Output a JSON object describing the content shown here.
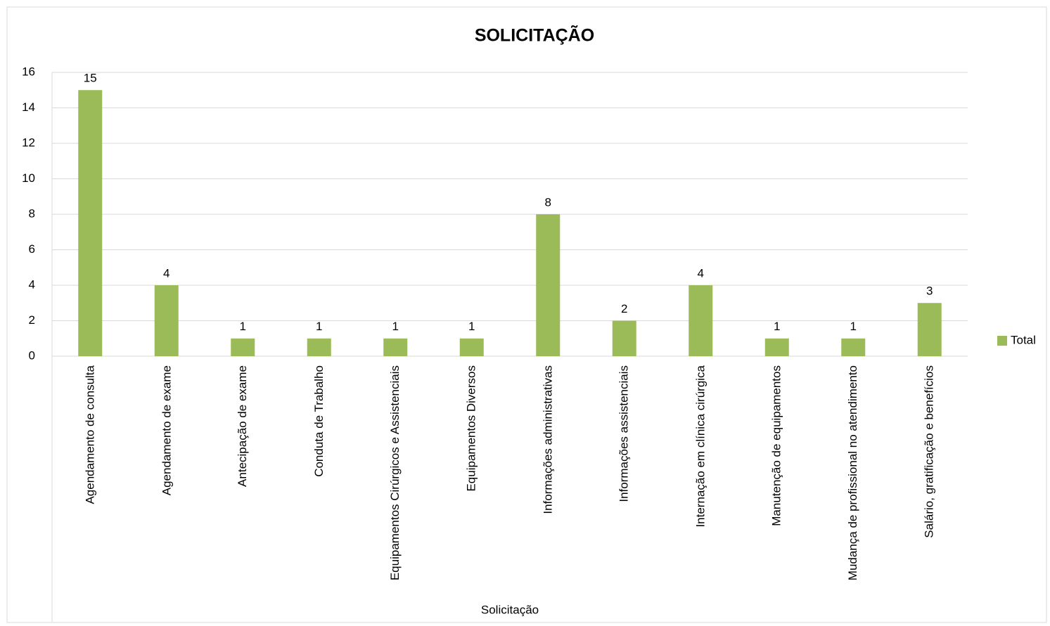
{
  "chart_data": {
    "type": "bar",
    "title": "SOLICITAÇÃO",
    "x_label": "Solicitação",
    "categories": [
      "Agendamento de consulta",
      "Agendamento de exame",
      "Antecipação de exame",
      "Conduta de Trabalho",
      "Equipamentos Cirúrgicos e Assistenciais",
      "Equipamentos Diversos",
      "Informações administrativas",
      "Informações assistenciais",
      "Internação em clínica cirúrgica",
      "Manutenção de equipamentos",
      "Mudança de profissional no atendimento",
      "Salário, gratificação e benefícios"
    ],
    "series": [
      {
        "name": "Total",
        "color": "#9bbb59",
        "values": [
          15,
          4,
          1,
          1,
          1,
          1,
          8,
          2,
          4,
          1,
          1,
          3
        ]
      }
    ],
    "ylim": [
      0,
      16
    ],
    "yticks": [
      0,
      2,
      4,
      6,
      8,
      10,
      12,
      14,
      16
    ],
    "grid": true,
    "legend": "right",
    "data_labels": true
  }
}
